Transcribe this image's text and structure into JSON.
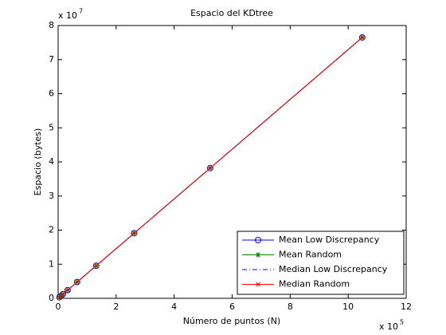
{
  "chart_data": {
    "type": "line",
    "title": "Espacio del KDtree",
    "x_label": "Número de puntos (N)",
    "y_label": "Espacio (bytes)",
    "x_multiplier": {
      "base": "x 10",
      "power": "5"
    },
    "y_multiplier": {
      "base": "x 10",
      "power": "7"
    },
    "x": [
      0.041,
      0.082,
      0.164,
      0.328,
      0.655,
      1.311,
      2.621,
      5.243,
      10.486
    ],
    "series": [
      {
        "name": "Mean Low Discrepancy",
        "color": "#0000ff",
        "marker": "circle",
        "linestyle": "solid",
        "values": [
          0.03,
          0.06,
          0.12,
          0.24,
          0.478,
          0.955,
          1.91,
          3.82,
          7.65
        ]
      },
      {
        "name": "Mean Random",
        "color": "#008000",
        "marker": "asterisk",
        "linestyle": "solid",
        "values": [
          0.03,
          0.06,
          0.12,
          0.24,
          0.478,
          0.955,
          1.91,
          3.82,
          7.65
        ]
      },
      {
        "name": "Median Low Discrepancy",
        "color": "#0000ff",
        "marker": "none",
        "linestyle": "dashdot",
        "values": [
          0.03,
          0.06,
          0.12,
          0.24,
          0.478,
          0.955,
          1.91,
          3.82,
          7.65
        ]
      },
      {
        "name": "Median Random",
        "color": "#ff0000",
        "marker": "x",
        "linestyle": "solid",
        "values": [
          0.03,
          0.06,
          0.12,
          0.24,
          0.478,
          0.955,
          1.91,
          3.82,
          7.65
        ]
      }
    ],
    "xlim": [
      0,
      12
    ],
    "xticks": [
      0,
      2,
      4,
      6,
      8,
      10,
      12
    ],
    "ylim": [
      0,
      8
    ],
    "yticks": [
      0,
      1,
      2,
      3,
      4,
      5,
      6,
      7,
      8
    ],
    "grid": false,
    "legend": "lower-right"
  }
}
